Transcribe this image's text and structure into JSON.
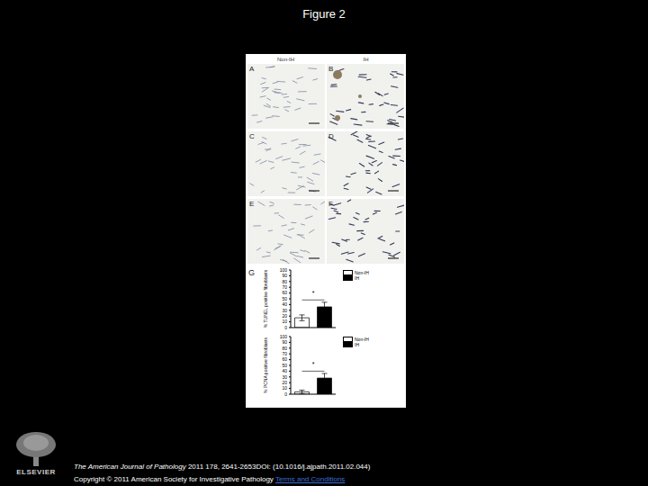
{
  "slide": {
    "title": "Figure 2",
    "journal": "The American Journal of Pathology",
    "citation": "2011 178, 2641-2653DOI: (10.1016/j.ajpath.2011.02.044)",
    "copyright": "Copyright © 2011 American Society for Investigative Pathology",
    "link": "Terms and Conditions",
    "logo": "ELSEVIER"
  },
  "figure": {
    "columns": [
      "Non-IH",
      "IH"
    ],
    "panels": [
      "A",
      "B",
      "C",
      "D",
      "E",
      "F"
    ],
    "chart_panel": "G"
  },
  "chart_data": [
    {
      "type": "bar",
      "y_label": "% TUNEL positive fibroblasts",
      "categories": [
        "Non-IH",
        "IH"
      ],
      "values": [
        17,
        36
      ],
      "errors": [
        5,
        8
      ],
      "colors": [
        "#ffffff",
        "#000000"
      ],
      "ylim": [
        0,
        100
      ],
      "yticks": [
        0,
        10,
        20,
        30,
        40,
        50,
        60,
        70,
        80,
        90,
        100
      ],
      "legend": "upper right",
      "tick_labels": "y",
      "annotations": [
        {
          "text": "*",
          "y": 48
        }
      ]
    },
    {
      "type": "bar",
      "y_label": "% PCNA positive fibroblasts",
      "categories": [
        "Non-IH",
        "IH"
      ],
      "values": [
        4,
        28
      ],
      "errors": [
        3,
        8
      ],
      "colors": [
        "#ffffff",
        "#000000"
      ],
      "ylim": [
        0,
        100
      ],
      "yticks": [
        0,
        10,
        20,
        30,
        40,
        50,
        60,
        70,
        80,
        90,
        100
      ],
      "legend": "upper right",
      "tick_labels": "y",
      "annotations": [
        {
          "text": "*",
          "y": 40
        }
      ]
    }
  ]
}
